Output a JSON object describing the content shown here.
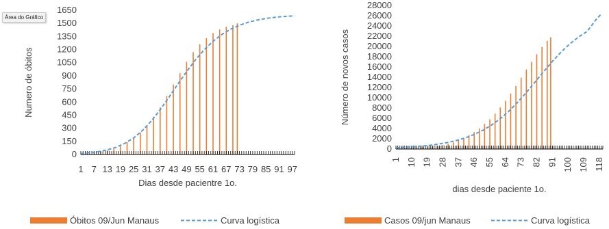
{
  "colors": {
    "bar": "#ED7D31",
    "curve": "#5B9BD5",
    "text": "#404040",
    "axis": "#000000"
  },
  "tooltip": "Área do Gráfico",
  "chart_data": [
    {
      "type": "bar",
      "title": "",
      "xlabel": "Dias desde pacientre 1o.",
      "ylabel": "Numero de óbitos",
      "ylim": [
        0,
        1650
      ],
      "yticks": [
        0,
        150,
        300,
        450,
        600,
        750,
        900,
        1050,
        1200,
        1350,
        1500,
        1650
      ],
      "xticks": [
        "1",
        "7",
        "13",
        "19",
        "25",
        "31",
        "37",
        "43",
        "49",
        "55",
        "61",
        "67",
        "73",
        "79",
        "85",
        "91",
        "97"
      ],
      "x_range": [
        1,
        98
      ],
      "grid": false,
      "legend_position": "bottom",
      "series": [
        {
          "name": "Óbitos 09/Jun Manaus",
          "kind": "bars",
          "x": [
            1,
            4,
            7,
            10,
            13,
            16,
            19,
            22,
            25,
            28,
            31,
            34,
            37,
            40,
            43,
            46,
            49,
            52,
            55,
            58,
            61,
            64,
            67,
            70,
            72
          ],
          "values": [
            8,
            12,
            20,
            32,
            48,
            70,
            100,
            140,
            190,
            250,
            330,
            430,
            540,
            670,
            800,
            930,
            1060,
            1170,
            1260,
            1330,
            1390,
            1430,
            1460,
            1480,
            1500
          ]
        },
        {
          "name": "Curva logística",
          "kind": "line",
          "x": [
            1,
            5,
            9,
            13,
            17,
            21,
            25,
            29,
            33,
            37,
            41,
            45,
            49,
            53,
            57,
            61,
            65,
            69,
            73,
            77,
            81,
            85,
            89,
            93,
            98
          ],
          "values": [
            12,
            20,
            33,
            53,
            83,
            128,
            190,
            275,
            383,
            512,
            655,
            804,
            948,
            1082,
            1199,
            1295,
            1373,
            1433,
            1479,
            1513,
            1538,
            1556,
            1569,
            1579,
            1586
          ]
        }
      ]
    },
    {
      "type": "bar",
      "title": "",
      "xlabel": "dias desde paciente 1o.",
      "ylabel": "Número de novos casos",
      "ylim": [
        0,
        28000
      ],
      "yticks": [
        0,
        2000,
        4000,
        6000,
        8000,
        10000,
        12000,
        14000,
        16000,
        18000,
        20000,
        22000,
        24000,
        26000,
        28000
      ],
      "xticks": [
        "1",
        "10",
        "19",
        "28",
        "37",
        "46",
        "55",
        "64",
        "73",
        "82",
        "91",
        "100",
        "109",
        "118"
      ],
      "x_range": [
        1,
        120
      ],
      "grid": false,
      "legend_position": "bottom",
      "series": [
        {
          "name": "Casos 09/jun Manaus",
          "kind": "bars",
          "x": [
            1,
            4,
            7,
            10,
            13,
            16,
            19,
            22,
            25,
            28,
            31,
            34,
            37,
            40,
            43,
            46,
            49,
            52,
            55,
            58,
            61,
            64,
            67,
            70,
            73,
            76,
            79,
            82,
            85,
            88,
            90
          ],
          "values": [
            100,
            150,
            200,
            250,
            300,
            350,
            420,
            500,
            620,
            800,
            1000,
            1300,
            1700,
            2100,
            2700,
            3300,
            4000,
            4900,
            5800,
            6900,
            8100,
            9400,
            10800,
            12300,
            13900,
            15500,
            17000,
            18500,
            19900,
            21100,
            21800
          ]
        },
        {
          "name": "Curva logística",
          "kind": "line",
          "x": [
            1,
            6,
            11,
            16,
            21,
            26,
            31,
            36,
            41,
            46,
            51,
            56,
            61,
            66,
            71,
            76,
            81,
            86,
            91,
            96,
            101,
            106,
            111,
            116,
            119
          ],
          "values": [
            250,
            330,
            430,
            570,
            750,
            990,
            1290,
            1680,
            2190,
            2840,
            3660,
            4680,
            5920,
            7400,
            9110,
            11020,
            13050,
            15110,
            17100,
            18920,
            20510,
            21850,
            22940,
            25200,
            26300
          ]
        }
      ]
    }
  ]
}
